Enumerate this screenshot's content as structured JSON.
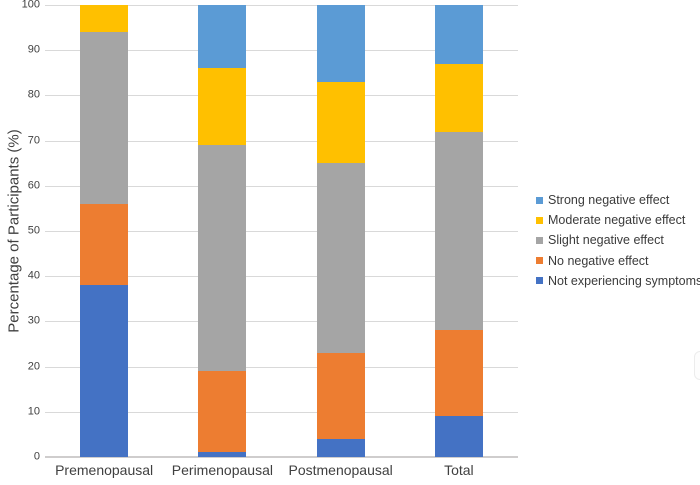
{
  "chart_data": {
    "type": "bar",
    "stacked": true,
    "title": "",
    "xlabel": "",
    "ylabel": "Percentage of Participants (%)",
    "ylim": [
      0,
      100
    ],
    "ytick_interval": 10,
    "yticks": [
      "0",
      "10",
      "20",
      "30",
      "40",
      "50",
      "60",
      "70",
      "80",
      "90",
      "100"
    ],
    "grid": "horizontal",
    "categories": [
      "Premenopausal",
      "Perimenopausal",
      "Postmenopausal",
      "Total"
    ],
    "series": [
      {
        "name": "Not experiencing symptoms",
        "color": "#4472C4",
        "values": [
          38,
          1,
          4,
          9
        ]
      },
      {
        "name": "No negative effect",
        "color": "#ED7D31",
        "values": [
          18,
          18,
          19,
          19
        ]
      },
      {
        "name": "Slight negative effect",
        "color": "#A5A5A5",
        "values": [
          38,
          50,
          42,
          44
        ]
      },
      {
        "name": "Moderate negative effect",
        "color": "#FFC000",
        "values": [
          6,
          17,
          18,
          15
        ]
      },
      {
        "name": "Strong negative effect",
        "color": "#5B9BD5",
        "values": [
          0,
          14,
          17,
          13
        ]
      }
    ],
    "legend": {
      "position": "right",
      "order_top_to_bottom": [
        "Strong negative effect",
        "Moderate negative effect",
        "Slight negative effect",
        "No negative effect",
        "Not experiencing symptoms"
      ]
    },
    "colors": {
      "gridline": "#d9d9d9",
      "axis_line": "#cfcdcd",
      "text": "#404040",
      "background": "#ffffff"
    }
  }
}
